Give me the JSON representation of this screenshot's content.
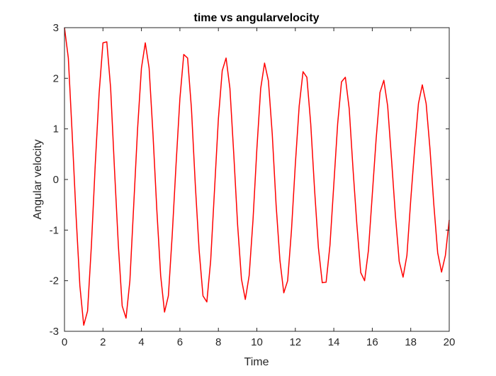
{
  "chart_data": {
    "type": "line",
    "title": "time vs angularvelocity",
    "xlabel": "Time",
    "ylabel": "Angular velocity",
    "xlim": [
      0,
      20
    ],
    "ylim": [
      -3,
      3
    ],
    "xticks": [
      "0",
      "2",
      "4",
      "6",
      "8",
      "10",
      "12",
      "14",
      "16",
      "18",
      "20"
    ],
    "yticks": [
      "3",
      "2",
      "1",
      "0",
      "-1",
      "-2",
      "-3"
    ],
    "grid": false,
    "line_color": "#ff0000",
    "series": [
      {
        "x": [
          0.0,
          0.2,
          0.4,
          0.6,
          0.8,
          1.0,
          1.2,
          1.4,
          1.6,
          1.8,
          2.0,
          2.2,
          2.4,
          2.6,
          2.8,
          3.0,
          3.2,
          3.4,
          3.6,
          3.8,
          4.0,
          4.2,
          4.4,
          4.6,
          4.8,
          5.0,
          5.2,
          5.4,
          5.6,
          5.8,
          6.0,
          6.2,
          6.4,
          6.6,
          6.8,
          7.0,
          7.2,
          7.4,
          7.6,
          7.8,
          8.0,
          8.2,
          8.4,
          8.6,
          8.8,
          9.0,
          9.2,
          9.4,
          9.6,
          9.8,
          10.0,
          10.2,
          10.4,
          10.6,
          10.8,
          11.0,
          11.2,
          11.4,
          11.6,
          11.8,
          12.0,
          12.2,
          12.4,
          12.6,
          12.8,
          13.0,
          13.2,
          13.4,
          13.6,
          13.8,
          14.0,
          14.2,
          14.4,
          14.6,
          14.8,
          15.0,
          15.2,
          15.4,
          15.6,
          15.8,
          16.0,
          16.2,
          16.4,
          16.6,
          16.8,
          17.0,
          17.2,
          17.4,
          17.6,
          17.8,
          18.0,
          18.2,
          18.4,
          18.6,
          18.8,
          19.0,
          19.2,
          19.4,
          19.6,
          19.8,
          20.0
        ],
        "y": [
          3.0,
          2.4,
          0.9,
          -0.7,
          -2.1,
          -2.88,
          -2.6,
          -1.3,
          0.3,
          1.7,
          2.7,
          2.72,
          1.8,
          0.2,
          -1.3,
          -2.5,
          -2.74,
          -2.0,
          -0.5,
          1.0,
          2.2,
          2.7,
          2.2,
          0.9,
          -0.6,
          -1.9,
          -2.62,
          -2.3,
          -1.1,
          0.3,
          1.6,
          2.47,
          2.4,
          1.4,
          -0.1,
          -1.4,
          -2.3,
          -2.42,
          -1.6,
          -0.2,
          1.2,
          2.15,
          2.4,
          1.8,
          0.5,
          -0.9,
          -1.97,
          -2.37,
          -1.9,
          -0.8,
          0.6,
          1.8,
          2.3,
          1.95,
          0.9,
          -0.5,
          -1.6,
          -2.24,
          -2.0,
          -1.0,
          0.3,
          1.45,
          2.13,
          2.02,
          1.1,
          -0.2,
          -1.35,
          -2.04,
          -2.03,
          -1.3,
          -0.1,
          1.1,
          1.93,
          2.02,
          1.4,
          0.2,
          -0.9,
          -1.84,
          -2.0,
          -1.4,
          -0.3,
          0.8,
          1.72,
          1.96,
          1.45,
          0.4,
          -0.7,
          -1.62,
          -1.93,
          -1.5,
          -0.4,
          0.6,
          1.5,
          1.87,
          1.5,
          0.6,
          -0.5,
          -1.45,
          -1.83,
          -1.5,
          -0.8
        ]
      }
    ]
  }
}
